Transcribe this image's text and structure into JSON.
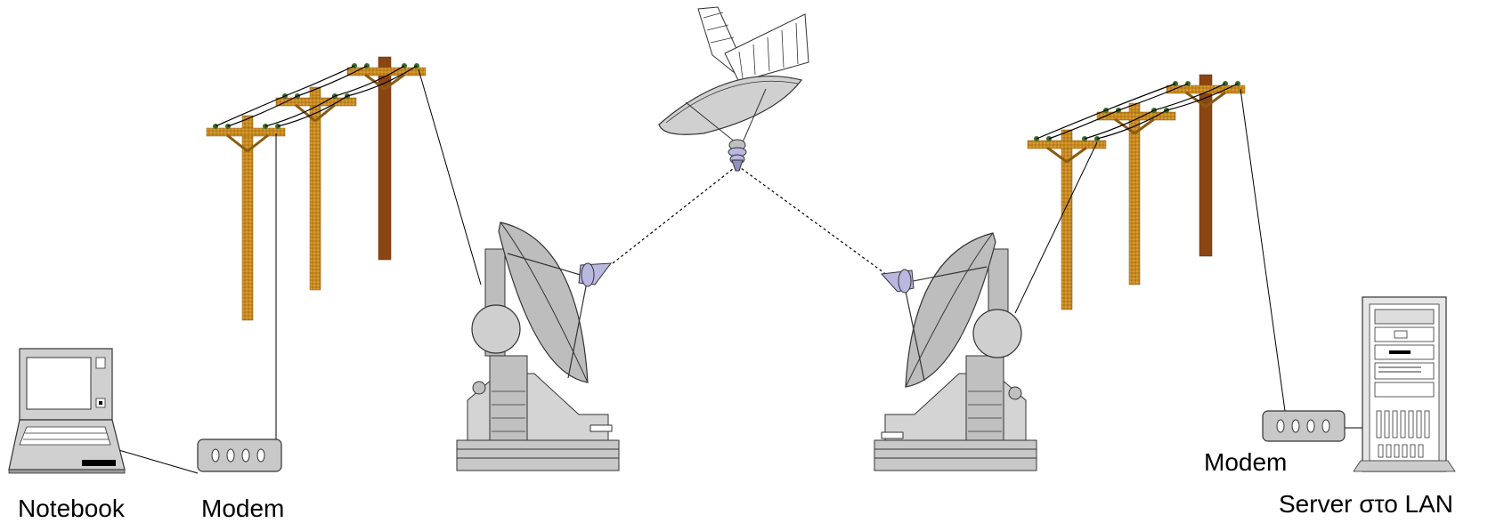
{
  "labels": {
    "notebook": "Notebook",
    "modem_left": "Modem",
    "modem_right": "Modem",
    "server": "Server στο LAN"
  },
  "icons": {
    "notebook": "laptop-icon",
    "modem": "modem-icon",
    "utility_pole": "utility-pole-icon",
    "ground_station": "satellite-dish-icon",
    "satellite": "satellite-icon",
    "server": "server-tower-icon"
  },
  "colors": {
    "pole_wood": "#c8891e",
    "pole_dark": "#8b4513",
    "device_gray": "#c8c8c8",
    "feed_horn": "#b8b8e0",
    "line": "#000000"
  }
}
